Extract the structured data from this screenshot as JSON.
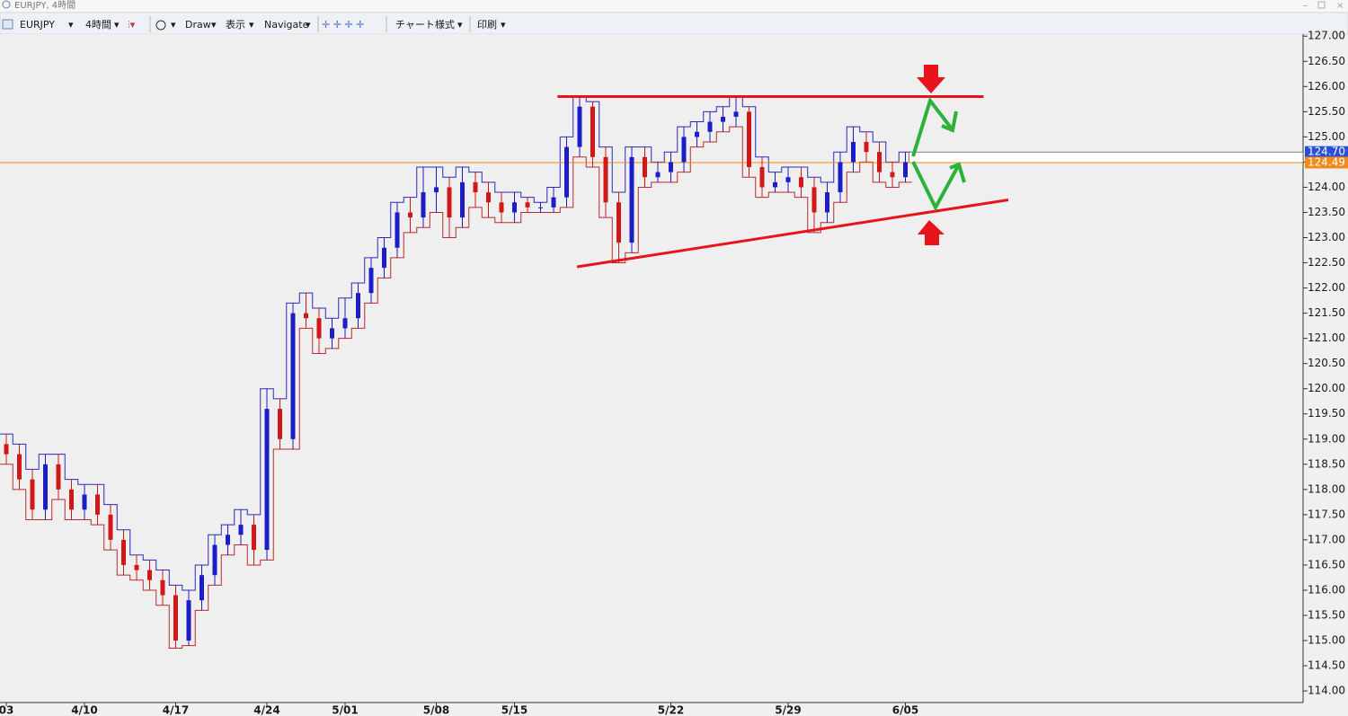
{
  "window": {
    "title": "EURJPY, 4時間"
  },
  "toolbar": {
    "symbol": "EURJPY",
    "timeframe": "4時間",
    "draw": "Draw",
    "view": "表示",
    "navigate": "Navigate",
    "chart_style": "チャート様式",
    "print": "印刷"
  },
  "chart_data": {
    "type": "candlestick",
    "categories": [
      "03",
      null,
      null,
      null,
      null,
      null,
      "4/10",
      null,
      null,
      null,
      null,
      null,
      null,
      "4/17",
      null,
      null,
      null,
      null,
      null,
      null,
      "4/24",
      null,
      null,
      null,
      null,
      null,
      "5/01",
      null,
      null,
      null,
      null,
      null,
      null,
      "5/08",
      null,
      null,
      null,
      null,
      null,
      "5/15",
      null,
      null,
      null,
      null,
      null,
      null,
      null,
      null,
      null,
      null,
      null,
      "5/22",
      null,
      null,
      null,
      null,
      null,
      null,
      null,
      null,
      "5/29",
      null,
      null,
      null,
      null,
      null,
      null,
      null,
      null,
      "6/05"
    ],
    "open": [
      118.9,
      118.7,
      118.2,
      117.6,
      118.5,
      118.0,
      117.6,
      117.9,
      117.5,
      117.0,
      116.5,
      116.4,
      116.2,
      115.9,
      115.0,
      115.8,
      116.3,
      116.9,
      117.1,
      117.3,
      116.8,
      119.6,
      119.0,
      121.5,
      121.4,
      121.0,
      121.2,
      121.4,
      121.9,
      122.4,
      122.8,
      123.5,
      123.4,
      123.9,
      124.0,
      123.4,
      124.1,
      123.9,
      123.7,
      123.5,
      123.7,
      123.6,
      123.6,
      123.8,
      124.8,
      125.6,
      124.6,
      123.7,
      122.9,
      124.6,
      124.2,
      124.3,
      124.5,
      125.0,
      125.1,
      125.3,
      125.4,
      125.5,
      124.4,
      124.0,
      124.1,
      124.2,
      124.0,
      123.5,
      123.9,
      124.5,
      124.9,
      124.7,
      124.3,
      124.2
    ],
    "high": [
      119.1,
      118.9,
      118.4,
      118.7,
      118.7,
      118.2,
      118.1,
      118.1,
      117.7,
      117.2,
      116.7,
      116.6,
      116.4,
      116.1,
      116.0,
      116.5,
      117.1,
      117.3,
      117.6,
      117.5,
      120.0,
      119.8,
      121.7,
      121.9,
      121.6,
      121.4,
      121.8,
      122.1,
      122.6,
      123.0,
      123.7,
      123.8,
      124.4,
      124.4,
      124.2,
      124.4,
      124.3,
      124.1,
      123.9,
      123.9,
      123.8,
      123.7,
      124.0,
      125.0,
      125.8,
      125.7,
      124.8,
      123.9,
      124.8,
      124.8,
      124.5,
      124.7,
      125.2,
      125.3,
      125.5,
      125.6,
      125.8,
      125.6,
      124.6,
      124.3,
      124.4,
      124.4,
      124.2,
      124.1,
      124.7,
      125.2,
      125.1,
      124.9,
      124.5,
      124.7
    ],
    "low": [
      118.5,
      118.0,
      117.4,
      117.4,
      117.8,
      117.4,
      117.4,
      117.3,
      116.8,
      116.3,
      116.2,
      116.0,
      115.7,
      114.85,
      114.9,
      115.6,
      116.1,
      116.7,
      116.9,
      116.5,
      116.6,
      118.8,
      118.8,
      121.2,
      120.7,
      120.8,
      121.0,
      121.2,
      121.7,
      122.2,
      122.6,
      123.1,
      123.2,
      123.5,
      123.0,
      123.2,
      123.6,
      123.4,
      123.3,
      123.3,
      123.5,
      123.5,
      123.5,
      123.6,
      124.6,
      124.4,
      123.4,
      122.5,
      122.7,
      124.0,
      124.1,
      124.1,
      124.3,
      124.8,
      124.9,
      125.1,
      125.2,
      124.2,
      123.8,
      123.9,
      123.9,
      123.8,
      123.1,
      123.3,
      123.7,
      124.3,
      124.5,
      124.1,
      124.0,
      124.1
    ],
    "close": [
      118.7,
      118.2,
      117.6,
      118.5,
      118.0,
      117.6,
      117.9,
      117.5,
      117.0,
      116.5,
      116.4,
      116.2,
      115.9,
      115.0,
      115.8,
      116.3,
      116.9,
      117.1,
      117.3,
      116.8,
      119.6,
      119.0,
      121.5,
      121.4,
      121.0,
      121.2,
      121.4,
      121.9,
      122.4,
      122.8,
      123.5,
      123.4,
      123.9,
      124.0,
      123.4,
      124.1,
      123.9,
      123.7,
      123.5,
      123.7,
      123.6,
      123.6,
      123.8,
      124.8,
      125.6,
      124.6,
      123.7,
      122.9,
      124.6,
      124.2,
      124.3,
      124.5,
      125.0,
      125.1,
      125.3,
      125.4,
      125.5,
      124.4,
      124.0,
      124.1,
      124.2,
      124.0,
      123.5,
      123.9,
      124.5,
      124.9,
      124.7,
      124.3,
      124.2,
      124.5
    ],
    "up_color": "#1c1cc8",
    "down_color": "#d01818",
    "ylim": [
      113.77,
      127.04
    ],
    "yticks": [
      {
        "value": 114,
        "label": "114.00"
      },
      {
        "value": 114.5,
        "label": "114.50"
      },
      {
        "value": 115,
        "label": "115.00"
      },
      {
        "value": 115.5,
        "label": "115.50"
      },
      {
        "value": 116,
        "label": "116.00"
      },
      {
        "value": 116.5,
        "label": "116.50"
      },
      {
        "value": 117,
        "label": "117.00"
      },
      {
        "value": 117.5,
        "label": "117.50"
      },
      {
        "value": 118,
        "label": "118.00"
      },
      {
        "value": 118.5,
        "label": "118.50"
      },
      {
        "value": 119,
        "label": "119.00"
      },
      {
        "value": 119.5,
        "label": "119.50"
      },
      {
        "value": 120,
        "label": "120.00"
      },
      {
        "value": 120.5,
        "label": "120.50"
      },
      {
        "value": 121,
        "label": "121.00"
      },
      {
        "value": 121.5,
        "label": "121.50"
      },
      {
        "value": 122,
        "label": "122.00"
      },
      {
        "value": 122.5,
        "label": "122.50"
      },
      {
        "value": 123,
        "label": "123.00"
      },
      {
        "value": 123.5,
        "label": "123.50"
      },
      {
        "value": 124,
        "label": "124.00"
      },
      {
        "value": 124.5,
        "label": "124.50"
      },
      {
        "value": 125,
        "label": "125.00"
      },
      {
        "value": 125.5,
        "label": "125.50"
      },
      {
        "value": 126,
        "label": "126.00"
      },
      {
        "value": 126.5,
        "label": "126.50"
      },
      {
        "value": 127,
        "label": "127.00"
      }
    ],
    "price_lines": [
      {
        "value": 124.7,
        "label": "124.70",
        "color": "#2a4ed8"
      },
      {
        "value": 124.49,
        "label": "124.49",
        "color": "#f08a18"
      }
    ],
    "trendlines": [
      {
        "from": [
          42.3,
          125.8
        ],
        "to": [
          75.0,
          125.8
        ],
        "color": "#e8141c"
      },
      {
        "from": [
          43.8,
          122.42
        ],
        "to": [
          76.9,
          123.75
        ],
        "color": "#e8141c"
      }
    ]
  }
}
